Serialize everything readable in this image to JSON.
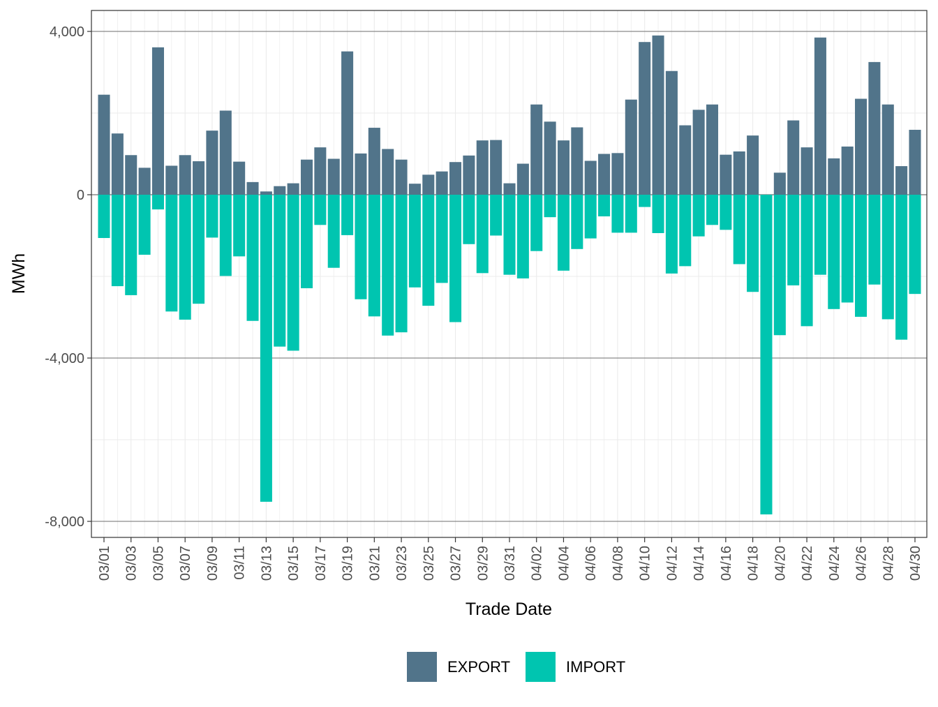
{
  "chart_data": {
    "type": "bar",
    "stacked": true,
    "xlabel": "Trade Date",
    "ylabel": "MWh",
    "ylim": [
      -8400,
      4500
    ],
    "yticks": [
      4000,
      0,
      -4000,
      -8000
    ],
    "ytick_labels": [
      "4,000",
      "0",
      "-4,000",
      "-8,000"
    ],
    "grid": true,
    "legend_position": "bottom",
    "categories": [
      "03/01",
      "03/02",
      "03/03",
      "03/04",
      "03/05",
      "03/06",
      "03/07",
      "03/08",
      "03/09",
      "03/10",
      "03/11",
      "03/12",
      "03/13",
      "03/14",
      "03/15",
      "03/16",
      "03/17",
      "03/18",
      "03/19",
      "03/20",
      "03/21",
      "03/22",
      "03/23",
      "03/24",
      "03/25",
      "03/26",
      "03/27",
      "03/28",
      "03/29",
      "03/30",
      "03/31",
      "04/01",
      "04/02",
      "04/03",
      "04/04",
      "04/05",
      "04/06",
      "04/07",
      "04/08",
      "04/09",
      "04/10",
      "04/11",
      "04/12",
      "04/13",
      "04/14",
      "04/15",
      "04/16",
      "04/17",
      "04/18",
      "04/19",
      "04/20",
      "04/21",
      "04/22",
      "04/23",
      "04/24",
      "04/25",
      "04/26",
      "04/27",
      "04/28",
      "04/29",
      "04/30"
    ],
    "tick_labels": [
      "03/01",
      "03/03",
      "03/05",
      "03/07",
      "03/09",
      "03/11",
      "03/13",
      "03/15",
      "03/17",
      "03/19",
      "03/21",
      "03/23",
      "03/25",
      "03/27",
      "03/29",
      "03/31",
      "04/02",
      "04/04",
      "04/06",
      "04/08",
      "04/10",
      "04/12",
      "04/14",
      "04/16",
      "04/18",
      "04/20",
      "04/22",
      "04/24",
      "04/26",
      "04/28",
      "04/30"
    ],
    "series": [
      {
        "name": "EXPORT",
        "color": "#51748a",
        "values": [
          2450,
          1500,
          970,
          660,
          3610,
          710,
          970,
          820,
          1570,
          2060,
          810,
          310,
          80,
          210,
          280,
          860,
          1160,
          880,
          3510,
          1010,
          1640,
          1120,
          860,
          270,
          490,
          570,
          800,
          960,
          1330,
          1340,
          280,
          760,
          2210,
          1790,
          1330,
          1650,
          830,
          1000,
          1020,
          2330,
          3740,
          3900,
          3030,
          1700,
          2080,
          2210,
          980,
          1060,
          1450,
          0,
          540,
          1820,
          1160,
          3850,
          890,
          1180,
          2350,
          3250,
          2210,
          700,
          1590
        ]
      },
      {
        "name": "IMPORT",
        "color": "#00c5b0",
        "values": [
          -1060,
          -2240,
          -2460,
          -1470,
          -360,
          -2860,
          -3060,
          -2670,
          -1050,
          -1990,
          -1510,
          -3090,
          -7520,
          -3720,
          -3820,
          -2290,
          -740,
          -1790,
          -990,
          -2560,
          -2980,
          -3450,
          -3370,
          -2270,
          -2720,
          -2160,
          -3120,
          -1210,
          -1920,
          -1000,
          -1960,
          -2050,
          -1380,
          -550,
          -1860,
          -1330,
          -1070,
          -530,
          -930,
          -930,
          -300,
          -940,
          -1930,
          -1750,
          -1020,
          -740,
          -860,
          -1700,
          -2380,
          -7830,
          -3440,
          -2220,
          -3220,
          -1960,
          -2800,
          -2640,
          -2990,
          -2200,
          -3050,
          -3550,
          -2430
        ]
      }
    ]
  }
}
